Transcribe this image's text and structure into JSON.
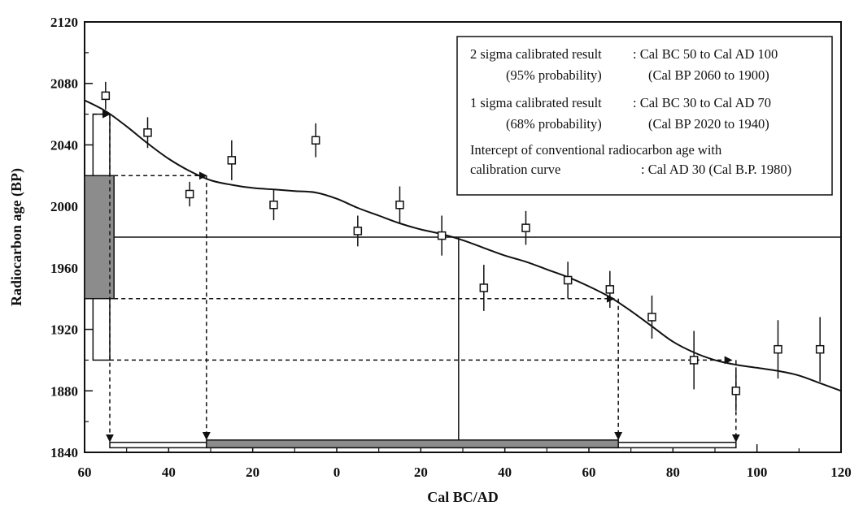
{
  "chart_data": {
    "type": "scatter",
    "xlabel": "Cal BC/AD",
    "ylabel": "Radiocarbon age (BP)",
    "x_ticks": [
      {
        "value": -60,
        "label": "60"
      },
      {
        "value": -40,
        "label": "40"
      },
      {
        "value": -20,
        "label": "20"
      },
      {
        "value": 0,
        "label": "0"
      },
      {
        "value": 20,
        "label": "20"
      },
      {
        "value": 40,
        "label": "40"
      },
      {
        "value": 60,
        "label": "60"
      },
      {
        "value": 80,
        "label": "80"
      },
      {
        "value": 100,
        "label": "100"
      },
      {
        "value": 120,
        "label": "120"
      }
    ],
    "y_ticks": [
      {
        "value": 1840,
        "label": "1840"
      },
      {
        "value": 1880,
        "label": "1880"
      },
      {
        "value": 1920,
        "label": "1920"
      },
      {
        "value": 1960,
        "label": "1960"
      },
      {
        "value": 2000,
        "label": "2000"
      },
      {
        "value": 2040,
        "label": "2040"
      },
      {
        "value": 2080,
        "label": "2080"
      },
      {
        "value": 2120,
        "label": "2120"
      }
    ],
    "xlim": [
      -60,
      120
    ],
    "ylim": [
      1840,
      2120
    ],
    "points": [
      {
        "x": -55,
        "y": 2072,
        "err": 9
      },
      {
        "x": -45,
        "y": 2048,
        "err": 10
      },
      {
        "x": -35,
        "y": 2008,
        "err": 8
      },
      {
        "x": -25,
        "y": 2030,
        "err": 13
      },
      {
        "x": -15,
        "y": 2001,
        "err": 10
      },
      {
        "x": -5,
        "y": 2043,
        "err": 11
      },
      {
        "x": 5,
        "y": 1984,
        "err": 10
      },
      {
        "x": 15,
        "y": 2001,
        "err": 12
      },
      {
        "x": 25,
        "y": 1981,
        "err": 13
      },
      {
        "x": 35,
        "y": 1947,
        "err": 15
      },
      {
        "x": 45,
        "y": 1986,
        "err": 11
      },
      {
        "x": 55,
        "y": 1952,
        "err": 12
      },
      {
        "x": 65,
        "y": 1946,
        "err": 12
      },
      {
        "x": 75,
        "y": 1928,
        "err": 14
      },
      {
        "x": 85,
        "y": 1900,
        "err": 19
      },
      {
        "x": 95,
        "y": 1880,
        "err": 13
      },
      {
        "x": 105,
        "y": 1907,
        "err": 19
      },
      {
        "x": 115,
        "y": 1907,
        "err": 21
      }
    ],
    "calibration_curve": [
      {
        "x": -60,
        "y": 2069
      },
      {
        "x": -55,
        "y": 2062
      },
      {
        "x": -50,
        "y": 2052
      },
      {
        "x": -45,
        "y": 2041
      },
      {
        "x": -40,
        "y": 2031
      },
      {
        "x": -35,
        "y": 2023
      },
      {
        "x": -30,
        "y": 2017
      },
      {
        "x": -25,
        "y": 2014
      },
      {
        "x": -20,
        "y": 2012
      },
      {
        "x": -15,
        "y": 2011
      },
      {
        "x": -10,
        "y": 2010
      },
      {
        "x": -5,
        "y": 2009
      },
      {
        "x": 0,
        "y": 2005
      },
      {
        "x": 5,
        "y": 1999
      },
      {
        "x": 10,
        "y": 1994
      },
      {
        "x": 15,
        "y": 1989
      },
      {
        "x": 20,
        "y": 1985
      },
      {
        "x": 25,
        "y": 1982
      },
      {
        "x": 30,
        "y": 1978
      },
      {
        "x": 35,
        "y": 1973
      },
      {
        "x": 40,
        "y": 1968
      },
      {
        "x": 45,
        "y": 1964
      },
      {
        "x": 50,
        "y": 1959
      },
      {
        "x": 55,
        "y": 1954
      },
      {
        "x": 60,
        "y": 1948
      },
      {
        "x": 65,
        "y": 1941
      },
      {
        "x": 70,
        "y": 1932
      },
      {
        "x": 75,
        "y": 1922
      },
      {
        "x": 80,
        "y": 1912
      },
      {
        "x": 85,
        "y": 1905
      },
      {
        "x": 90,
        "y": 1900
      },
      {
        "x": 95,
        "y": 1897
      },
      {
        "x": 100,
        "y": 1895
      },
      {
        "x": 105,
        "y": 1893
      },
      {
        "x": 110,
        "y": 1890
      },
      {
        "x": 115,
        "y": 1885
      },
      {
        "x": 120,
        "y": 1880
      }
    ],
    "conventional_age": 1980,
    "intercept_x": 29,
    "sigma1_y_range": [
      1940,
      2020
    ],
    "sigma2_y_range": [
      1900,
      2060
    ],
    "sigma1_x_range": [
      -31,
      67
    ],
    "sigma2_x_range": [
      -54,
      95
    ],
    "legend": {
      "placement": "top-right",
      "line1_left": "2 sigma calibrated result",
      "line1_right": ": Cal BC 50 to Cal AD 100",
      "line2_left": "(95% probability)",
      "line2_right": "(Cal BP 2060 to 1900)",
      "line3_left": "1 sigma calibrated result",
      "line3_right": ": Cal BC 30 to Cal AD 70",
      "line4_left": "(68% probability)",
      "line4_right": "(Cal BP 2020 to 1940)",
      "line5": "Intercept of conventional radiocarbon age with",
      "line6_left": "calibration curve",
      "line6_right": ":   Cal AD 30 (Cal B.P. 1980)"
    }
  }
}
